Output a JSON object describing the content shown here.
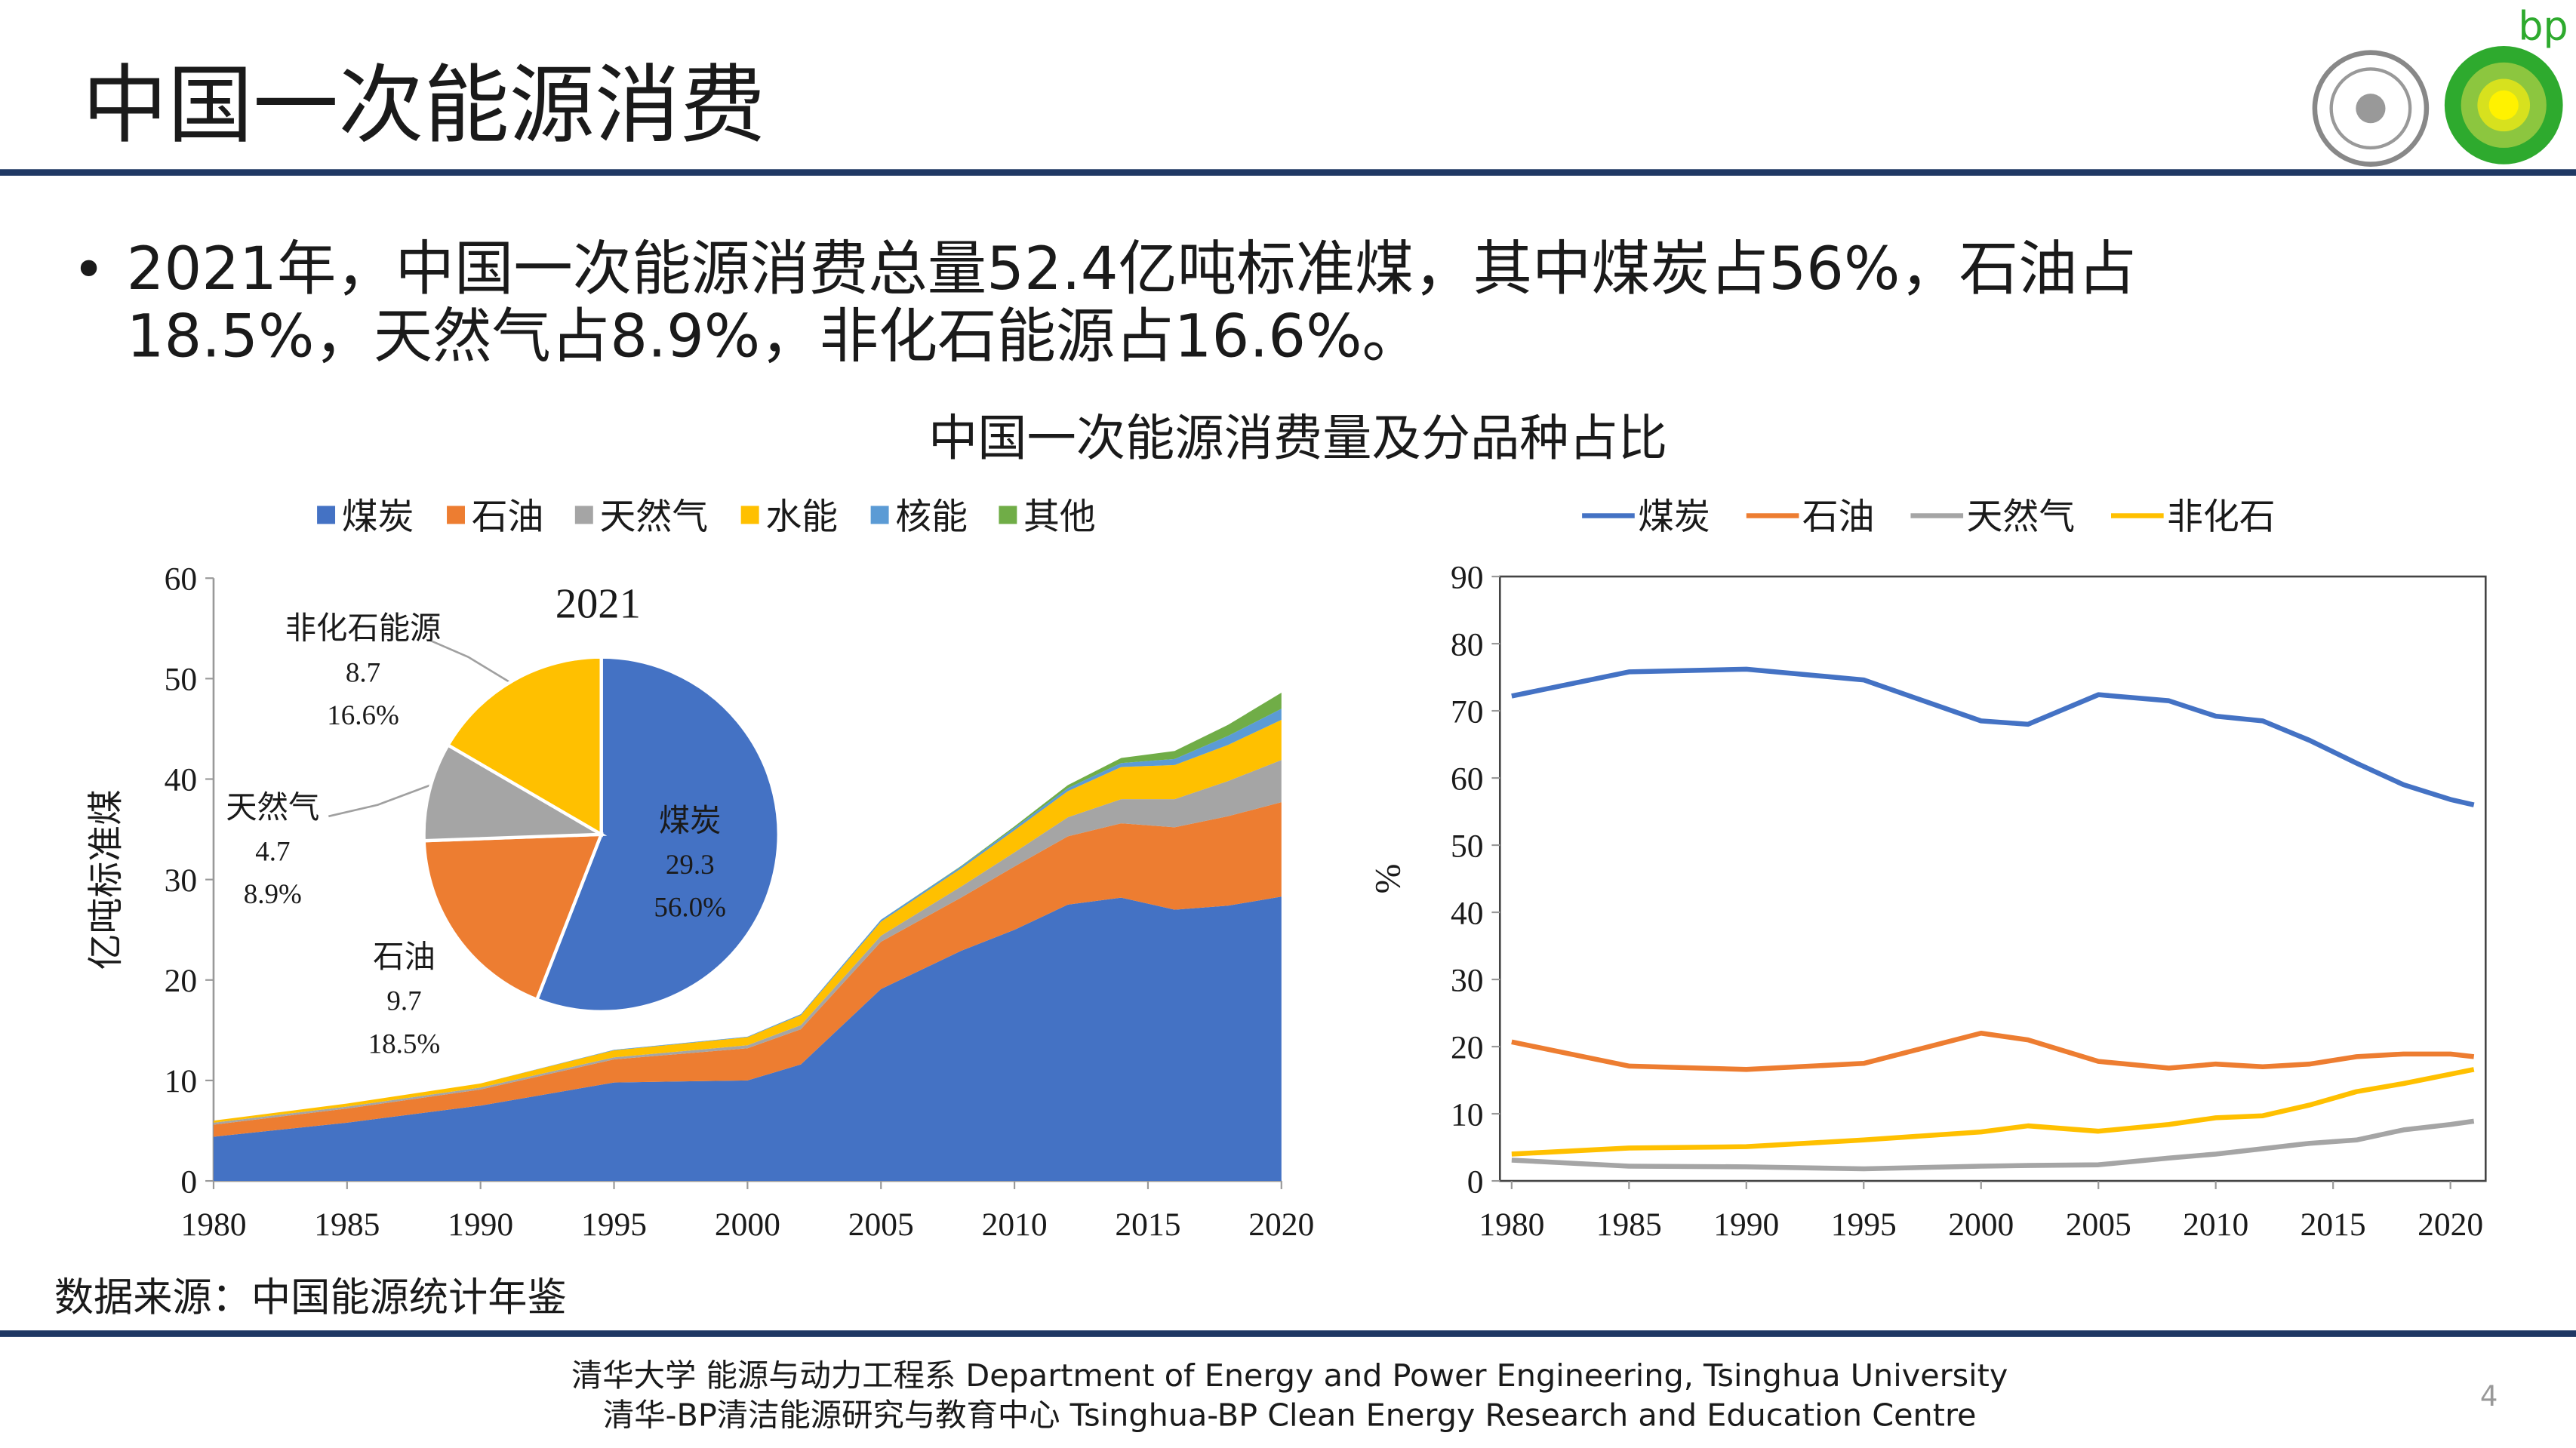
{
  "header": {
    "title": "中国一次能源消费",
    "logo_text": "bp"
  },
  "bullet": {
    "lines": [
      "2021年，中国一次能源消费总量52.4亿吨标准煤，其中煤炭占56%，石油占",
      "18.5%，天然气占8.9%，非化石能源占16.6%。"
    ]
  },
  "chart_title": "中国一次能源消费量及分品种占比",
  "chart_data": [
    {
      "type": "area",
      "stacked": true,
      "ylabel": "亿吨标准煤",
      "x": [
        1980,
        1985,
        1990,
        1995,
        2000,
        2002,
        2005,
        2008,
        2010,
        2012,
        2014,
        2016,
        2018,
        2020
      ],
      "xlim": [
        1980,
        2020
      ],
      "ylim": [
        0,
        60
      ],
      "xticks": [
        1980,
        1985,
        1990,
        1995,
        2000,
        2005,
        2010,
        2015,
        2020
      ],
      "yticks": [
        0,
        10,
        20,
        30,
        40,
        50,
        60
      ],
      "series": [
        {
          "name": "煤炭",
          "color": "#4472c4",
          "values": [
            4.4,
            5.8,
            7.5,
            9.8,
            10.0,
            11.6,
            19.1,
            22.9,
            25.0,
            27.5,
            28.2,
            27.0,
            27.4,
            28.3
          ]
        },
        {
          "name": "石油",
          "color": "#ed7d31",
          "values": [
            1.2,
            1.4,
            1.6,
            2.3,
            3.2,
            3.5,
            4.7,
            5.3,
            6.3,
            6.8,
            7.4,
            8.2,
            8.9,
            9.4
          ]
        },
        {
          "name": "天然气",
          "color": "#a5a5a5",
          "values": [
            0.2,
            0.2,
            0.2,
            0.2,
            0.3,
            0.4,
            0.6,
            1.1,
            1.4,
            1.9,
            2.4,
            2.8,
            3.5,
            4.2
          ]
        },
        {
          "name": "水能",
          "color": "#ffc000",
          "values": [
            0.2,
            0.3,
            0.4,
            0.7,
            0.8,
            1.0,
            1.4,
            1.8,
            2.2,
            2.6,
            3.2,
            3.4,
            3.6,
            4.0
          ]
        },
        {
          "name": "核能",
          "color": "#5b9bd5",
          "values": [
            0,
            0,
            0,
            0.05,
            0.06,
            0.1,
            0.2,
            0.2,
            0.25,
            0.3,
            0.4,
            0.6,
            0.9,
            1.1
          ]
        },
        {
          "name": "其他",
          "color": "#70ad47",
          "values": [
            0,
            0,
            0,
            0,
            0,
            0,
            0,
            0.05,
            0.15,
            0.3,
            0.5,
            0.8,
            1.1,
            1.6
          ]
        }
      ]
    },
    {
      "type": "pie",
      "title": "2021",
      "categories": [
        "煤炭",
        "石油",
        "天然气",
        "非化石能源"
      ],
      "values": [
        29.3,
        9.7,
        4.7,
        8.7
      ],
      "percent_labels": [
        "56.0%",
        "18.5%",
        "8.9%",
        "16.6%"
      ],
      "colors": [
        "#4472c4",
        "#ed7d31",
        "#a5a5a5",
        "#ffc000"
      ]
    },
    {
      "type": "line",
      "ylabel": "%",
      "x": [
        1980,
        1985,
        1990,
        1995,
        2000,
        2002,
        2005,
        2008,
        2010,
        2012,
        2014,
        2016,
        2018,
        2020,
        2021
      ],
      "xlim": [
        1979.5,
        2021.5
      ],
      "ylim": [
        0,
        90
      ],
      "xticks": [
        1980,
        1985,
        1990,
        1995,
        2000,
        2005,
        2010,
        2015,
        2020
      ],
      "yticks": [
        0,
        10,
        20,
        30,
        40,
        50,
        60,
        70,
        80,
        90
      ],
      "series": [
        {
          "name": "煤炭",
          "color": "#4472c4",
          "values": [
            72.2,
            75.8,
            76.2,
            74.6,
            68.5,
            68.0,
            72.4,
            71.5,
            69.2,
            68.5,
            65.6,
            62.2,
            59.0,
            56.8,
            56.0
          ]
        },
        {
          "name": "石油",
          "color": "#ed7d31",
          "values": [
            20.7,
            17.1,
            16.6,
            17.5,
            22.0,
            21.0,
            17.8,
            16.8,
            17.4,
            17.0,
            17.4,
            18.5,
            18.9,
            18.9,
            18.5
          ]
        },
        {
          "name": "天然气",
          "color": "#a5a5a5",
          "values": [
            3.1,
            2.2,
            2.1,
            1.8,
            2.2,
            2.3,
            2.4,
            3.4,
            4.0,
            4.8,
            5.6,
            6.1,
            7.6,
            8.4,
            8.9
          ]
        },
        {
          "name": "非化石",
          "color": "#ffc000",
          "values": [
            4.0,
            4.9,
            5.1,
            6.1,
            7.3,
            8.2,
            7.4,
            8.4,
            9.4,
            9.7,
            11.3,
            13.3,
            14.5,
            15.9,
            16.6
          ]
        }
      ]
    }
  ],
  "source": "数据来源：中国能源统计年鉴",
  "footer": {
    "lines": [
      "清华大学 能源与动力工程系 Department of Energy and Power Engineering, Tsinghua University",
      "清华-BP清洁能源研究与教育中心 Tsinghua-BP Clean Energy Research and Education Centre"
    ],
    "page": 4
  }
}
